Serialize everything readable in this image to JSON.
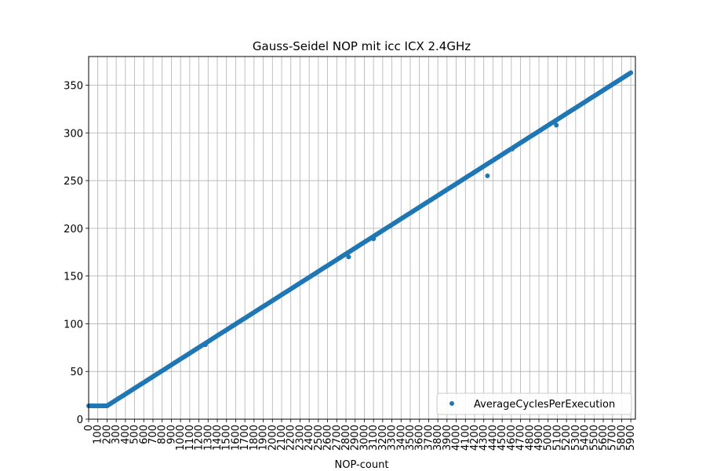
{
  "chart_data": {
    "type": "scatter",
    "title": "Gauss-Seidel NOP mit icc ICX 2.4GHz",
    "xlabel": "NOP-count",
    "ylabel": "",
    "xlim": [
      0,
      5950
    ],
    "ylim": [
      0,
      380
    ],
    "grid": true,
    "legend_position": "lower-right",
    "colors": {
      "series": "#1f77b4",
      "grid": "#b0b0b0",
      "axis": "#000000"
    },
    "x_ticks": [
      0,
      100,
      200,
      300,
      400,
      500,
      600,
      700,
      800,
      900,
      1000,
      1100,
      1200,
      1300,
      1400,
      1500,
      1600,
      1700,
      1800,
      1900,
      2000,
      2100,
      2200,
      2300,
      2400,
      2500,
      2600,
      2700,
      2800,
      2900,
      3000,
      3100,
      3200,
      3300,
      3400,
      3500,
      3600,
      3700,
      3800,
      3900,
      4000,
      4100,
      4200,
      4300,
      4400,
      4500,
      4600,
      4700,
      4800,
      4900,
      5000,
      5100,
      5200,
      5300,
      5400,
      5500,
      5600,
      5700,
      5800,
      5900
    ],
    "y_ticks": [
      0,
      50,
      100,
      150,
      200,
      250,
      300,
      350
    ],
    "series": [
      {
        "name": "AverageCyclesPerExecution",
        "marker": "circle",
        "segments": [
          {
            "x_start": 0,
            "x_end": 200,
            "y_start": 14,
            "y_end": 14
          },
          {
            "x_start": 200,
            "x_end": 5900,
            "y_start": 14,
            "y_end": 363
          }
        ],
        "outliers": [
          {
            "x": 1270,
            "y": 78
          },
          {
            "x": 2830,
            "y": 170
          },
          {
            "x": 3100,
            "y": 189
          },
          {
            "x": 4200,
            "y": 259
          },
          {
            "x": 4340,
            "y": 255
          },
          {
            "x": 4610,
            "y": 283
          },
          {
            "x": 5090,
            "y": 308
          }
        ]
      }
    ]
  }
}
